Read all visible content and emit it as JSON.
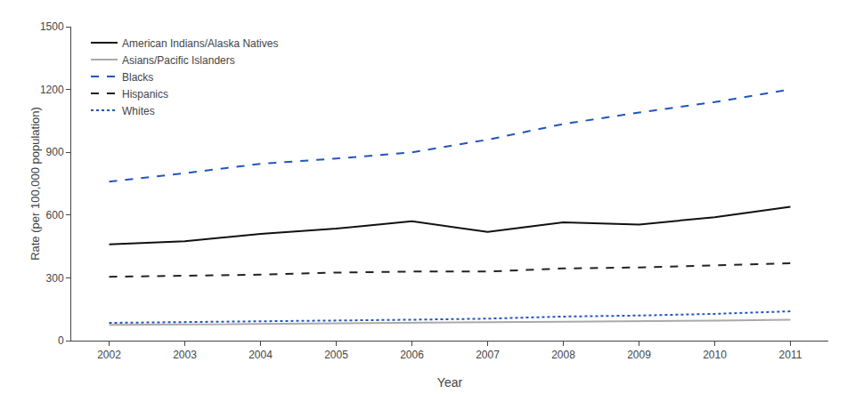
{
  "chart_data": {
    "type": "line",
    "xlabel": "Year",
    "ylabel": "Rate (per 100,000 population)",
    "x": [
      2002,
      2003,
      2004,
      2005,
      2006,
      2007,
      2008,
      2009,
      2010,
      2011
    ],
    "series": [
      {
        "name": "American Indians/Alaska Natives",
        "color": "#111111",
        "line_style": "solid",
        "values": [
          460,
          475,
          510,
          535,
          570,
          520,
          565,
          555,
          590,
          640
        ]
      },
      {
        "name": "Asians/Pacific Islanders",
        "color": "#aaaaaa",
        "line_style": "solid",
        "values": [
          75,
          78,
          82,
          85,
          88,
          88,
          90,
          92,
          96,
          100
        ]
      },
      {
        "name": "Blacks",
        "color": "#2255bb",
        "line_style": "dashed",
        "values": [
          760,
          800,
          845,
          870,
          900,
          960,
          1035,
          1090,
          1140,
          1200
        ]
      },
      {
        "name": "Hispanics",
        "color": "#222222",
        "line_style": "dashed",
        "values": [
          305,
          310,
          315,
          325,
          330,
          330,
          345,
          350,
          360,
          370
        ]
      },
      {
        "name": "Whites",
        "color": "#2255bb",
        "line_style": "dotted",
        "values": [
          85,
          88,
          92,
          95,
          100,
          105,
          115,
          120,
          128,
          140
        ]
      }
    ],
    "xlim": [
      2001.5,
      2011.5
    ],
    "xticks": [
      2002,
      2003,
      2004,
      2005,
      2006,
      2007,
      2008,
      2009,
      2010,
      2011
    ],
    "ylim": [
      0,
      1500
    ],
    "yticks": [
      0,
      300,
      600,
      900,
      1200,
      1500
    ],
    "grid": false,
    "legend": "upper left"
  }
}
